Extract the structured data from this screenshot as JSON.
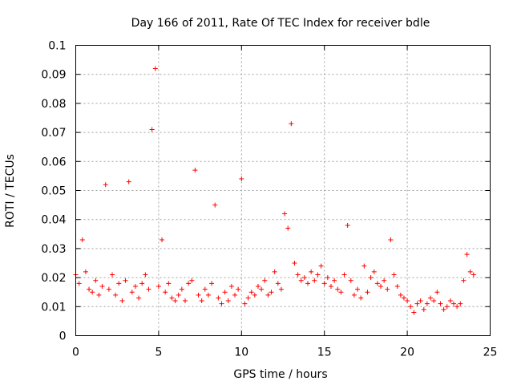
{
  "chart_data": {
    "type": "scatter",
    "title": "Day 166 of 2011, Rate Of TEC Index for receiver bdle",
    "xlabel": "GPS time / hours",
    "ylabel": "ROTI / TECUs",
    "xlim": [
      0,
      25
    ],
    "ylim": [
      0,
      0.1
    ],
    "xticks": [
      0,
      5,
      10,
      15,
      20,
      25
    ],
    "yticks": [
      0,
      0.01,
      0.02,
      0.03,
      0.04,
      0.05,
      0.06,
      0.07,
      0.08,
      0.09,
      0.1
    ],
    "xtick_labels": [
      "0",
      "5",
      "10",
      "15",
      "20",
      "25"
    ],
    "ytick_labels": [
      "0",
      "0.01",
      "0.02",
      "0.03",
      "0.04",
      "0.05",
      "0.06",
      "0.07",
      "0.08",
      "0.09",
      "0.1"
    ],
    "grid": true,
    "marker": "+",
    "color": "#ff0000",
    "series": [
      {
        "name": "ROTI",
        "x": [
          0.0,
          0.2,
          0.4,
          0.6,
          0.8,
          1.0,
          1.2,
          1.4,
          1.6,
          1.8,
          2.0,
          2.2,
          2.4,
          2.6,
          2.8,
          3.0,
          3.2,
          3.4,
          3.6,
          3.8,
          4.0,
          4.2,
          4.4,
          4.6,
          4.8,
          5.0,
          5.2,
          5.4,
          5.6,
          5.8,
          6.0,
          6.2,
          6.4,
          6.6,
          6.8,
          7.0,
          7.2,
          7.4,
          7.6,
          7.8,
          8.0,
          8.2,
          8.4,
          8.6,
          8.8,
          9.0,
          9.2,
          9.4,
          9.6,
          9.8,
          10.0,
          10.2,
          10.4,
          10.6,
          10.8,
          11.0,
          11.2,
          11.4,
          11.6,
          11.8,
          12.0,
          12.2,
          12.4,
          12.6,
          12.8,
          13.0,
          13.2,
          13.4,
          13.6,
          13.8,
          14.0,
          14.2,
          14.4,
          14.6,
          14.8,
          15.0,
          15.2,
          15.4,
          15.6,
          15.8,
          16.0,
          16.2,
          16.4,
          16.6,
          16.8,
          17.0,
          17.2,
          17.4,
          17.6,
          17.8,
          18.0,
          18.2,
          18.4,
          18.6,
          18.8,
          19.0,
          19.2,
          19.4,
          19.6,
          19.8,
          20.0,
          20.2,
          20.4,
          20.6,
          20.8,
          21.0,
          21.2,
          21.4,
          21.6,
          21.8,
          22.0,
          22.2,
          22.4,
          22.6,
          22.8,
          23.0,
          23.2,
          23.4,
          23.6,
          23.8,
          24.0
        ],
        "y": [
          0.021,
          0.018,
          0.033,
          0.022,
          0.016,
          0.015,
          0.019,
          0.014,
          0.017,
          0.052,
          0.016,
          0.021,
          0.014,
          0.018,
          0.012,
          0.019,
          0.053,
          0.015,
          0.017,
          0.013,
          0.018,
          0.021,
          0.016,
          0.071,
          0.092,
          0.017,
          0.033,
          0.015,
          0.018,
          0.013,
          0.012,
          0.014,
          0.016,
          0.012,
          0.018,
          0.019,
          0.057,
          0.014,
          0.012,
          0.016,
          0.014,
          0.018,
          0.045,
          0.013,
          0.011,
          0.015,
          0.012,
          0.017,
          0.014,
          0.016,
          0.054,
          0.011,
          0.013,
          0.015,
          0.014,
          0.017,
          0.016,
          0.019,
          0.014,
          0.015,
          0.022,
          0.018,
          0.016,
          0.042,
          0.037,
          0.073,
          0.025,
          0.021,
          0.019,
          0.02,
          0.018,
          0.022,
          0.019,
          0.021,
          0.024,
          0.018,
          0.02,
          0.017,
          0.019,
          0.016,
          0.015,
          0.021,
          0.038,
          0.019,
          0.014,
          0.016,
          0.013,
          0.024,
          0.015,
          0.02,
          0.022,
          0.018,
          0.017,
          0.019,
          0.016,
          0.033,
          0.021,
          0.017,
          0.014,
          0.013,
          0.012,
          0.01,
          0.008,
          0.011,
          0.012,
          0.009,
          0.011,
          0.013,
          0.012,
          0.015,
          0.011,
          0.009,
          0.01,
          0.012,
          0.011,
          0.01,
          0.011,
          0.019,
          0.028,
          0.022,
          0.021
        ]
      }
    ]
  }
}
